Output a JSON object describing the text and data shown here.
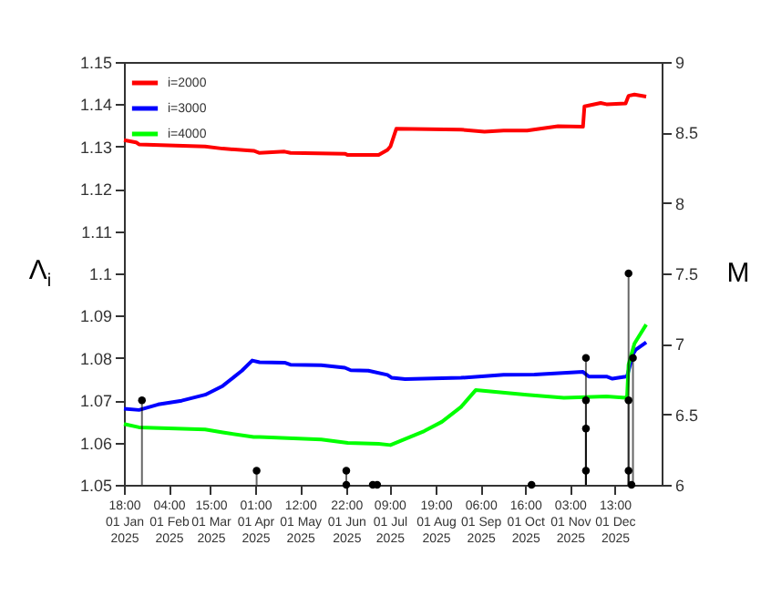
{
  "chart_data": {
    "type": "line",
    "ylabel": "Λ$_{i}$",
    "y2label": "M",
    "xlim": [
      "2025-01-01T18:00",
      "2026-01-02T12:00"
    ],
    "xticks": [
      {
        "value": "2025-01-01T18:00",
        "label": "18:00\n01 Jan\n2025"
      },
      {
        "value": "2025-02-01T04:00",
        "label": "04:00\n01 Feb\n2025"
      },
      {
        "value": "2025-03-01T15:00",
        "label": "15:00\n01 Mar\n2025"
      },
      {
        "value": "2025-04-01T01:00",
        "label": "01:00\n01 Apr\n2025"
      },
      {
        "value": "2025-05-01T12:00",
        "label": "12:00\n01 May\n2025"
      },
      {
        "value": "2025-06-01T22:00",
        "label": "22:00\n01 Jun\n2025"
      },
      {
        "value": "2025-07-01T09:00",
        "label": "09:00\n01 Jul\n2025"
      },
      {
        "value": "2025-08-01T19:00",
        "label": "19:00\n01 Aug\n2025"
      },
      {
        "value": "2025-09-01T06:00",
        "label": "06:00\n01 Sep\n2025"
      },
      {
        "value": "2025-10-01T16:00",
        "label": "16:00\n01 Oct\n2025"
      },
      {
        "value": "2025-11-01T03:00",
        "label": "03:00\n01 Nov\n2025"
      },
      {
        "value": "2025-12-01T13:00",
        "label": "13:00\n01 Dec\n2025"
      }
    ],
    "ylim": [
      1.05,
      1.15
    ],
    "yticks": [
      1.05,
      1.06,
      1.07,
      1.08,
      1.09,
      1.1,
      1.11,
      1.12,
      1.13,
      1.14,
      1.15
    ],
    "y2lim": [
      6,
      9
    ],
    "y2ticks": [
      6,
      6.5,
      7,
      7.5,
      8,
      8.5,
      9
    ],
    "legend": "top left",
    "grid": false,
    "line_style": "solid",
    "series": [
      {
        "name": "i=2000",
        "color": "#ff0000",
        "x": [
          "2025-01-01T18:00",
          "2025-01-10",
          "2025-01-12",
          "2025-02-26",
          "2025-03-10",
          "2025-03-31",
          "2025-04-04",
          "2025-04-21",
          "2025-04-25",
          "2025-06-01",
          "2025-06-03",
          "2025-06-24",
          "2025-06-30",
          "2025-07-02",
          "2025-07-06",
          "2025-08-19",
          "2025-09-04",
          "2025-09-17",
          "2025-10-03",
          "2025-10-24",
          "2025-11-10",
          "2025-11-11",
          "2025-11-22",
          "2025-11-26",
          "2025-12-09",
          "2025-12-11",
          "2025-12-15",
          "2025-12-23"
        ],
        "values": [
          1.1315,
          1.131,
          1.1305,
          1.13,
          1.1295,
          1.129,
          1.1285,
          1.1288,
          1.1285,
          1.1283,
          1.128,
          1.128,
          1.1292,
          1.13,
          1.1342,
          1.134,
          1.1335,
          1.1338,
          1.1338,
          1.1348,
          1.1347,
          1.1395,
          1.1403,
          1.14,
          1.1402,
          1.142,
          1.1423,
          1.1418
        ]
      },
      {
        "name": "i=3000",
        "color": "#0000ff",
        "x": [
          "2025-01-01T18:00",
          "2025-01-12",
          "2025-01-25",
          "2025-02-10",
          "2025-02-26",
          "2025-03-10",
          "2025-03-23",
          "2025-03-30",
          "2025-04-04",
          "2025-04-21",
          "2025-04-25",
          "2025-05-16",
          "2025-06-01",
          "2025-06-05",
          "2025-06-17",
          "2025-06-30",
          "2025-07-03",
          "2025-07-12",
          "2025-08-19",
          "2025-09-17",
          "2025-10-08",
          "2025-11-10",
          "2025-11-14",
          "2025-11-26",
          "2025-11-30",
          "2025-12-09",
          "2025-12-10",
          "2025-12-14",
          "2025-12-16",
          "2025-12-23"
        ],
        "values": [
          1.068,
          1.0677,
          1.069,
          1.0699,
          1.0713,
          1.0734,
          1.077,
          1.0794,
          1.079,
          1.0789,
          1.0784,
          1.0783,
          1.0777,
          1.0771,
          1.077,
          1.076,
          1.0753,
          1.075,
          1.0753,
          1.076,
          1.0761,
          1.0767,
          1.0756,
          1.0756,
          1.0751,
          1.0756,
          1.0757,
          1.0809,
          1.082,
          1.0837
        ]
      },
      {
        "name": "i=4000",
        "color": "#00ff00",
        "x": [
          "2025-01-01T18:00",
          "2025-01-12",
          "2025-02-26",
          "2025-03-10",
          "2025-03-31",
          "2025-04-04",
          "2025-05-16",
          "2025-06-03",
          "2025-06-24",
          "2025-07-02",
          "2025-07-25",
          "2025-08-06",
          "2025-08-19",
          "2025-08-29",
          "2025-10-03",
          "2025-10-28",
          "2025-11-26",
          "2025-12-09",
          "2025-12-10",
          "2025-12-11",
          "2025-12-15",
          "2025-12-23"
        ],
        "values": [
          1.0644,
          1.0636,
          1.0631,
          1.0624,
          1.0613,
          1.0613,
          1.0607,
          1.0599,
          1.0597,
          1.0594,
          1.0627,
          1.0649,
          1.0684,
          1.0724,
          1.0713,
          1.0706,
          1.0709,
          1.0706,
          1.071,
          1.0784,
          1.0834,
          1.0879
        ]
      },
      {
        "type": "lollipop",
        "axis": "y2",
        "color": "#000000",
        "marker": "circle",
        "x": [
          "2025-01-14",
          "2025-04-02",
          "2025-06-02",
          "2025-06-02",
          "2025-06-20",
          "2025-06-23",
          "2025-10-06",
          "2025-11-12",
          "2025-11-12",
          "2025-11-12",
          "2025-11-12",
          "2025-12-11",
          "2025-12-11",
          "2025-12-11",
          "2025-12-13",
          "2025-12-14"
        ],
        "values": [
          6.6,
          6.1,
          6.1,
          6.0,
          6.0,
          6.0,
          6.0,
          6.9,
          6.6,
          6.4,
          6.1,
          7.5,
          6.6,
          6.1,
          6.0,
          6.9
        ]
      }
    ]
  }
}
